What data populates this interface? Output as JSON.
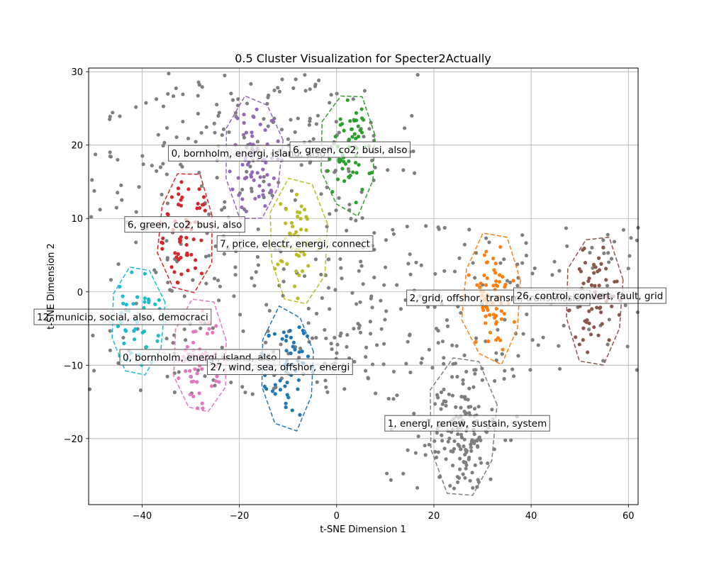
{
  "chart_data": {
    "type": "scatter",
    "title": "0.5 Cluster Visualization for Specter2Actually",
    "xlabel": "t-SNE Dimension 1",
    "ylabel": "t-SNE Dimension 2",
    "xlim": [
      -51,
      62
    ],
    "ylim": [
      -29,
      30.5
    ],
    "xticks": [
      -40,
      -20,
      0,
      20,
      40,
      60
    ],
    "yticks": [
      -20,
      -10,
      0,
      10,
      20,
      30
    ],
    "grid": true,
    "noise_color": "#7f7f7f",
    "clusters": [
      {
        "id": "purple",
        "color": "#9467bd",
        "center": [
          -17,
          18
        ],
        "radius": 6.2,
        "count": 60,
        "hull_style": "dashed"
      },
      {
        "id": "green",
        "color": "#2ca02c",
        "center": [
          2.5,
          19
        ],
        "radius": 6.0,
        "count": 55,
        "hull_style": "dashed"
      },
      {
        "id": "red",
        "color": "#d62728",
        "center": [
          -31,
          8
        ],
        "radius": 6.0,
        "count": 60,
        "hull_style": "dashed"
      },
      {
        "id": "olive",
        "color": "#bcbd22",
        "center": [
          -8,
          6.5
        ],
        "radius": 6.2,
        "count": 50,
        "hull_style": "dashed"
      },
      {
        "id": "cyan",
        "color": "#17becf",
        "center": [
          -41,
          -4
        ],
        "radius": 5.8,
        "count": 40,
        "hull_style": "dashed"
      },
      {
        "id": "pink",
        "color": "#e377c2",
        "center": [
          -28,
          -9
        ],
        "radius": 5.8,
        "count": 55,
        "hull_style": "dashed"
      },
      {
        "id": "blue",
        "color": "#1f77b4",
        "center": [
          -10,
          -10.5
        ],
        "radius": 6.0,
        "count": 55,
        "hull_style": "dashed"
      },
      {
        "id": "orange",
        "color": "#ff7f0e",
        "center": [
          32,
          -1
        ],
        "radius": 6.3,
        "count": 65,
        "hull_style": "dashed"
      },
      {
        "id": "brown",
        "color": "#8c564b",
        "center": [
          53,
          -1
        ],
        "radius": 6.3,
        "count": 70,
        "hull_style": "dashed"
      },
      {
        "id": "gray",
        "color": "#7f7f7f",
        "center": [
          26,
          -18.5
        ],
        "radius": 7.3,
        "count": 120,
        "hull_style": "dashed"
      }
    ],
    "annotations": [
      {
        "text": "0, bornholm, energi, island, also",
        "x": -34,
        "y": 18.5
      },
      {
        "text": "6, green, co2, busi, also",
        "x": -9,
        "y": 19
      },
      {
        "text": "6, green, co2, busi, also",
        "x": -43,
        "y": 8.8
      },
      {
        "text": "7, price, electr, energi, connect",
        "x": -24,
        "y": 6.2
      },
      {
        "text": "2, grid, offshor, transm, transmission",
        "x": 15,
        "y": -1.2
      },
      {
        "text": "26, control, convert, fault, grid",
        "x": 37,
        "y": -0.9
      },
      {
        "text": "12, municip, social, also, democraci",
        "x": -62,
        "y": -3.8
      },
      {
        "text": "0, bornholm, energi, island, also",
        "x": -44,
        "y": -9.3
      },
      {
        "text": "27, wind, sea, offshor, energi",
        "x": -26,
        "y": -10.6
      },
      {
        "text": "1, energi, renew, sustain, system",
        "x": 10.5,
        "y": -18.3
      }
    ]
  }
}
